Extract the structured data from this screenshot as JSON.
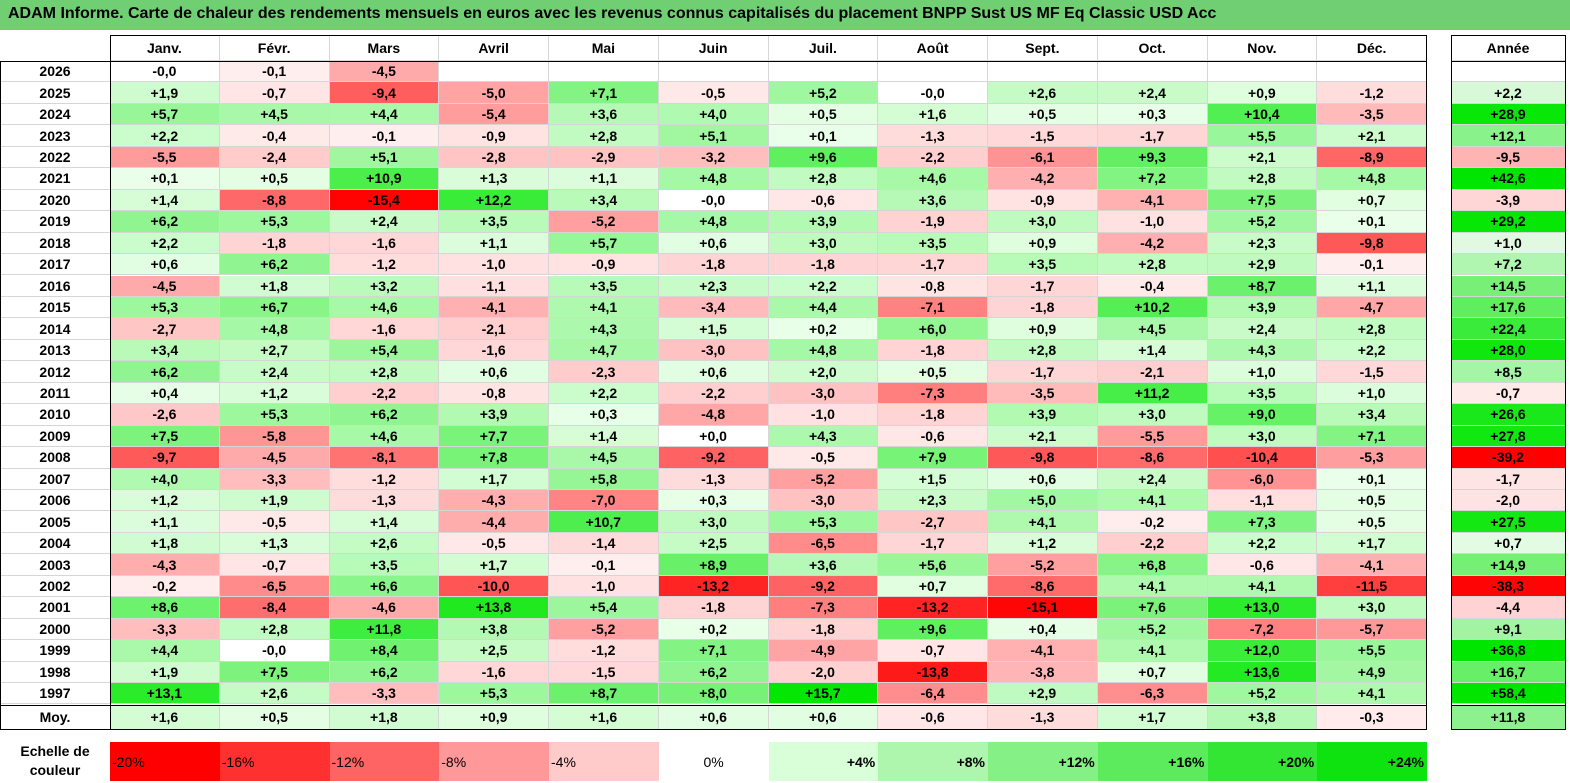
{
  "title": "ADAM Informe. Carte de chaleur des rendements mensuels en euros avec les revenus connus capitalisés du placement BNPP Sust US MF Eq Classic USD Acc",
  "chart_data": {
    "type": "heatmap",
    "title": "ADAM Informe. Carte de chaleur des rendements mensuels en euros avec les revenus connus capitalisés du placement BNPP Sust US MF Eq Classic USD Acc",
    "months": [
      "Janv.",
      "Févr.",
      "Mars",
      "Avril",
      "Mai",
      "Juin",
      "Juil.",
      "Août",
      "Sept.",
      "Oct.",
      "Nov.",
      "Déc."
    ],
    "year_header": "Année",
    "rows": [
      {
        "year": "2026",
        "months": [
          "-0,0",
          "-0,1",
          "-4,5",
          "",
          "",
          "",
          "",
          "",
          "",
          "",
          "",
          ""
        ],
        "annual": ""
      },
      {
        "year": "2025",
        "months": [
          "+1,9",
          "-0,7",
          "-9,4",
          "-5,0",
          "+7,1",
          "-0,5",
          "+5,2",
          "-0,0",
          "+2,6",
          "+2,4",
          "+0,9",
          "-1,2"
        ],
        "annual": "+2,2"
      },
      {
        "year": "2024",
        "months": [
          "+5,7",
          "+4,5",
          "+4,4",
          "-5,4",
          "+3,6",
          "+4,0",
          "+0,5",
          "+1,6",
          "+0,5",
          "+0,3",
          "+10,4",
          "-3,5"
        ],
        "annual": "+28,9"
      },
      {
        "year": "2023",
        "months": [
          "+2,2",
          "-0,4",
          "-0,1",
          "-0,9",
          "+2,8",
          "+5,1",
          "+0,1",
          "-1,3",
          "-1,5",
          "-1,7",
          "+5,5",
          "+2,1"
        ],
        "annual": "+12,1"
      },
      {
        "year": "2022",
        "months": [
          "-5,5",
          "-2,4",
          "+5,1",
          "-2,8",
          "-2,9",
          "-3,2",
          "+9,6",
          "-2,2",
          "-6,1",
          "+9,3",
          "+2,1",
          "-8,9"
        ],
        "annual": "-9,5"
      },
      {
        "year": "2021",
        "months": [
          "+0,1",
          "+0,5",
          "+10,9",
          "+1,3",
          "+1,1",
          "+4,8",
          "+2,8",
          "+4,6",
          "-4,2",
          "+7,2",
          "+2,8",
          "+4,8"
        ],
        "annual": "+42,6"
      },
      {
        "year": "2020",
        "months": [
          "+1,4",
          "-8,8",
          "-15,4",
          "+12,2",
          "+3,4",
          "-0,0",
          "-0,6",
          "+3,6",
          "-0,9",
          "-4,1",
          "+7,5",
          "+0,7"
        ],
        "annual": "-3,9"
      },
      {
        "year": "2019",
        "months": [
          "+6,2",
          "+5,3",
          "+2,4",
          "+3,5",
          "-5,2",
          "+4,8",
          "+3,9",
          "-1,9",
          "+3,0",
          "-1,0",
          "+5,2",
          "+0,1"
        ],
        "annual": "+29,2"
      },
      {
        "year": "2018",
        "months": [
          "+2,2",
          "-1,8",
          "-1,6",
          "+1,1",
          "+5,7",
          "+0,6",
          "+3,0",
          "+3,5",
          "+0,9",
          "-4,2",
          "+2,3",
          "-9,8"
        ],
        "annual": "+1,0"
      },
      {
        "year": "2017",
        "months": [
          "+0,6",
          "+6,2",
          "-1,2",
          "-1,0",
          "-0,9",
          "-1,8",
          "-1,8",
          "-1,7",
          "+3,5",
          "+2,8",
          "+2,9",
          "-0,1"
        ],
        "annual": "+7,2"
      },
      {
        "year": "2016",
        "months": [
          "-4,5",
          "+1,8",
          "+3,2",
          "-1,1",
          "+3,5",
          "+2,3",
          "+2,2",
          "-0,8",
          "-1,7",
          "-0,4",
          "+8,7",
          "+1,1"
        ],
        "annual": "+14,5"
      },
      {
        "year": "2015",
        "months": [
          "+5,3",
          "+6,7",
          "+4,6",
          "-4,1",
          "+4,1",
          "-3,4",
          "+4,4",
          "-7,1",
          "-1,8",
          "+10,2",
          "+3,9",
          "-4,7"
        ],
        "annual": "+17,6"
      },
      {
        "year": "2014",
        "months": [
          "-2,7",
          "+4,8",
          "-1,6",
          "-2,1",
          "+4,3",
          "+1,5",
          "+0,2",
          "+6,0",
          "+0,9",
          "+4,5",
          "+2,4",
          "+2,8"
        ],
        "annual": "+22,4"
      },
      {
        "year": "2013",
        "months": [
          "+3,4",
          "+2,7",
          "+5,4",
          "-1,6",
          "+4,7",
          "-3,0",
          "+4,8",
          "-1,8",
          "+2,8",
          "+1,4",
          "+4,3",
          "+2,2"
        ],
        "annual": "+28,0"
      },
      {
        "year": "2012",
        "months": [
          "+6,2",
          "+2,4",
          "+2,8",
          "+0,6",
          "-2,3",
          "+0,6",
          "+2,0",
          "+0,5",
          "-1,7",
          "-2,1",
          "+1,0",
          "-1,5"
        ],
        "annual": "+8,5"
      },
      {
        "year": "2011",
        "months": [
          "+0,4",
          "+1,2",
          "-2,2",
          "-0,8",
          "+2,2",
          "-2,2",
          "-3,0",
          "-7,3",
          "-3,5",
          "+11,2",
          "+3,5",
          "+1,0"
        ],
        "annual": "-0,7"
      },
      {
        "year": "2010",
        "months": [
          "-2,6",
          "+5,3",
          "+6,2",
          "+3,9",
          "+0,3",
          "-4,8",
          "-1,0",
          "-1,8",
          "+3,9",
          "+3,0",
          "+9,0",
          "+3,4"
        ],
        "annual": "+26,6"
      },
      {
        "year": "2009",
        "months": [
          "+7,5",
          "-5,8",
          "+4,6",
          "+7,7",
          "+1,4",
          "+0,0",
          "+4,3",
          "-0,6",
          "+2,1",
          "-5,5",
          "+3,0",
          "+7,1"
        ],
        "annual": "+27,8"
      },
      {
        "year": "2008",
        "months": [
          "-9,7",
          "-4,5",
          "-8,1",
          "+7,8",
          "+4,5",
          "-9,2",
          "-0,5",
          "+7,9",
          "-9,8",
          "-8,6",
          "-10,4",
          "-5,3"
        ],
        "annual": "-39,2"
      },
      {
        "year": "2007",
        "months": [
          "+4,0",
          "-3,3",
          "-1,2",
          "+1,7",
          "+5,8",
          "-1,3",
          "-5,2",
          "+1,5",
          "+0,6",
          "+2,4",
          "-6,0",
          "+0,1"
        ],
        "annual": "-1,7"
      },
      {
        "year": "2006",
        "months": [
          "+1,2",
          "+1,9",
          "-1,3",
          "-4,3",
          "-7,0",
          "+0,3",
          "-3,0",
          "+2,3",
          "+5,0",
          "+4,1",
          "-1,1",
          "+0,5"
        ],
        "annual": "-2,0"
      },
      {
        "year": "2005",
        "months": [
          "+1,1",
          "-0,5",
          "+1,4",
          "-4,4",
          "+10,7",
          "+3,0",
          "+5,3",
          "-2,7",
          "+4,1",
          "-0,2",
          "+7,3",
          "+0,5"
        ],
        "annual": "+27,5"
      },
      {
        "year": "2004",
        "months": [
          "+1,8",
          "+1,3",
          "+2,6",
          "-0,5",
          "-1,4",
          "+2,5",
          "-6,5",
          "-1,7",
          "+1,2",
          "-2,2",
          "+2,2",
          "+1,7"
        ],
        "annual": "+0,7"
      },
      {
        "year": "2003",
        "months": [
          "-4,3",
          "-0,7",
          "+3,5",
          "+1,7",
          "-0,1",
          "+8,9",
          "+3,6",
          "+5,6",
          "-5,2",
          "+6,8",
          "-0,6",
          "-4,1"
        ],
        "annual": "+14,9"
      },
      {
        "year": "2002",
        "months": [
          "-0,2",
          "-6,5",
          "+6,6",
          "-10,0",
          "-1,0",
          "-13,2",
          "-9,2",
          "+0,7",
          "-8,6",
          "+4,1",
          "+4,1",
          "-11,5"
        ],
        "annual": "-38,3"
      },
      {
        "year": "2001",
        "months": [
          "+8,6",
          "-8,4",
          "-4,6",
          "+13,8",
          "+5,4",
          "-1,8",
          "-7,3",
          "-13,2",
          "-15,1",
          "+7,6",
          "+13,0",
          "+3,0"
        ],
        "annual": "-4,4"
      },
      {
        "year": "2000",
        "months": [
          "-3,3",
          "+2,8",
          "+11,8",
          "+3,8",
          "-5,2",
          "+0,2",
          "-1,8",
          "+9,6",
          "+0,4",
          "+5,2",
          "-7,2",
          "-5,7"
        ],
        "annual": "+9,1"
      },
      {
        "year": "1999",
        "months": [
          "+4,4",
          "-0,0",
          "+8,4",
          "+2,5",
          "-1,2",
          "+7,1",
          "-4,9",
          "-0,7",
          "-4,1",
          "+4,1",
          "+12,0",
          "+5,5"
        ],
        "annual": "+36,8"
      },
      {
        "year": "1998",
        "months": [
          "+1,9",
          "+7,5",
          "+6,2",
          "-1,6",
          "-1,5",
          "+6,2",
          "-2,0",
          "-13,8",
          "-3,8",
          "+0,7",
          "+13,6",
          "+4,9"
        ],
        "annual": "+16,7"
      },
      {
        "year": "1997",
        "months": [
          "+13,1",
          "+2,6",
          "-3,3",
          "+5,3",
          "+8,7",
          "+8,0",
          "+15,7",
          "-6,4",
          "+2,9",
          "-6,3",
          "+5,2",
          "+4,1"
        ],
        "annual": "+58,4"
      }
    ],
    "average": {
      "label": "Moy.",
      "months": [
        "+1,6",
        "+0,5",
        "+1,8",
        "+0,9",
        "+1,6",
        "+0,6",
        "+0,6",
        "-0,6",
        "-1,3",
        "+1,7",
        "+3,8",
        "-0,3"
      ],
      "annual": "+11,8"
    },
    "color_scale": {
      "label": "Echelle de couleur",
      "steps": [
        "-20%",
        "-16%",
        "-12%",
        "-8%",
        "-4%",
        "0%",
        "+4%",
        "+8%",
        "+12%",
        "+16%",
        "+20%",
        "+24%"
      ],
      "values": [
        -20,
        -16,
        -12,
        -8,
        -4,
        0,
        4,
        8,
        12,
        16,
        20,
        24
      ]
    },
    "colors": {
      "negative_max": "#ff0000",
      "neutral": "#ffffff",
      "positive_max": "#00e600",
      "title_bar": "#6fcf72"
    }
  }
}
